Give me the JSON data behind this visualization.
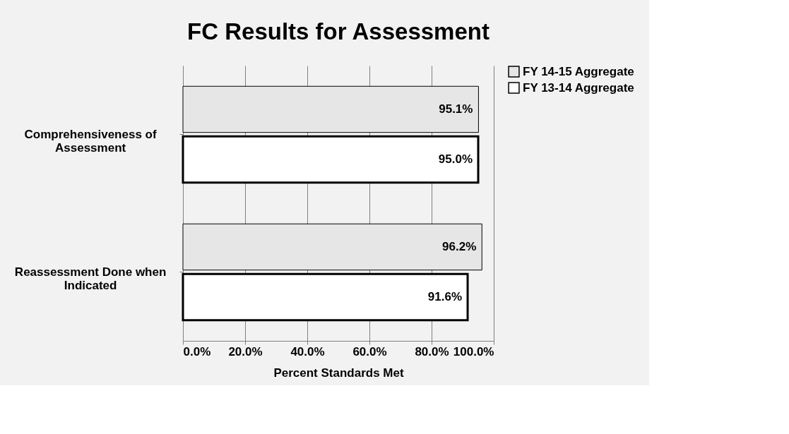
{
  "chart_data": {
    "type": "bar",
    "orientation": "horizontal",
    "title": "FC Results for Assessment",
    "xlabel": "Percent Standards Met",
    "categories": [
      "Comprehensiveness of Assessment",
      "Reassessment Done when Indicated"
    ],
    "series": [
      {
        "name": "FY 14-15 Aggregate",
        "color": "#e6e6e6",
        "values": [
          95.1,
          96.2
        ]
      },
      {
        "name": "FY 13-14 Aggregate",
        "color": "#ffffff",
        "values": [
          95.0,
          91.6
        ]
      }
    ],
    "xlim": [
      0,
      100
    ],
    "xticks": [
      {
        "value": 0,
        "label": "0.0%"
      },
      {
        "value": 20,
        "label": "20.0%"
      },
      {
        "value": 40,
        "label": "40.0%"
      },
      {
        "value": 60,
        "label": "60.0%"
      },
      {
        "value": 80,
        "label": "80.0%"
      },
      {
        "value": 100,
        "label": "100.0%"
      }
    ],
    "value_labels": [
      [
        "95.1%",
        "96.2%"
      ],
      [
        "95.0%",
        "91.6%"
      ]
    ],
    "grid": "x",
    "legend": "right"
  }
}
